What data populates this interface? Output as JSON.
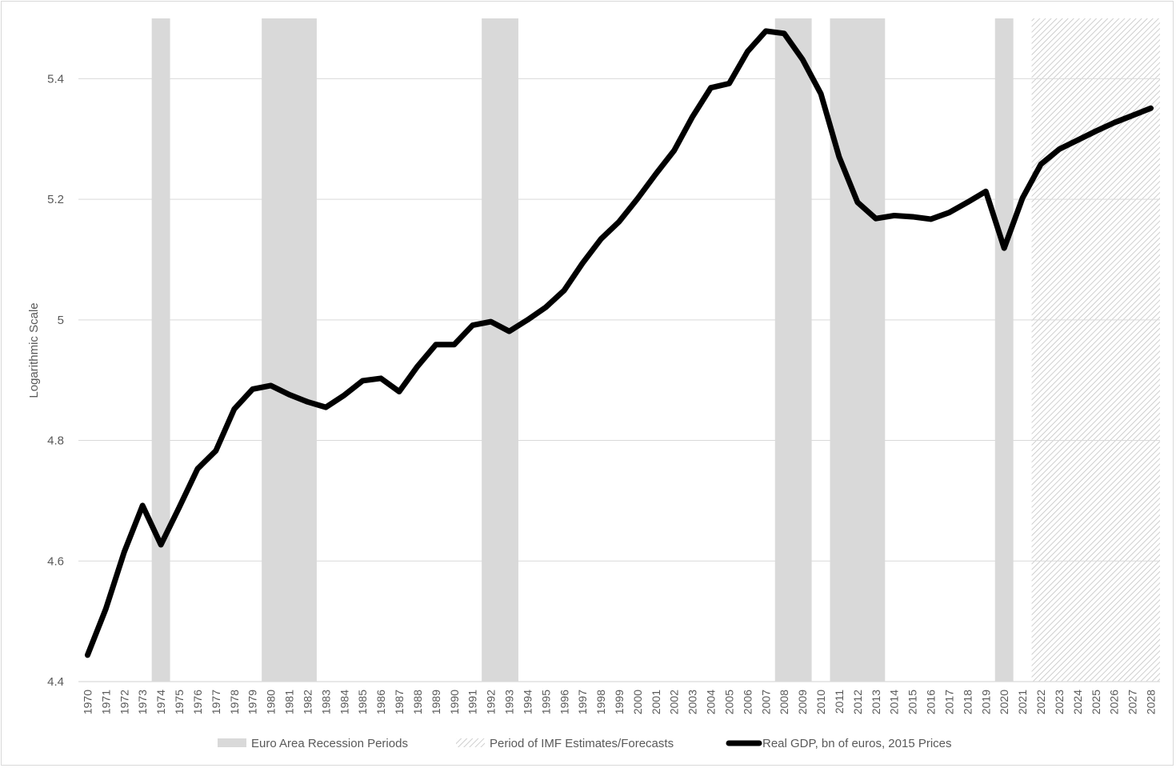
{
  "chart_data": {
    "type": "line",
    "title": "",
    "xlabel": "",
    "ylabel": "Logarithmic Scale",
    "ylim": [
      4.4,
      5.5
    ],
    "yticks": [
      "4.4",
      "4.6",
      "4.8",
      "5",
      "5.2",
      "5.4"
    ],
    "grid": "horizontal",
    "legend_position": "bottom",
    "x": [
      1970,
      1971,
      1972,
      1973,
      1974,
      1975,
      1976,
      1977,
      1978,
      1979,
      1980,
      1981,
      1982,
      1983,
      1984,
      1985,
      1986,
      1987,
      1988,
      1989,
      1990,
      1991,
      1992,
      1993,
      1994,
      1995,
      1996,
      1997,
      1998,
      1999,
      2000,
      2001,
      2002,
      2003,
      2004,
      2005,
      2006,
      2007,
      2008,
      2009,
      2010,
      2011,
      2012,
      2013,
      2014,
      2015,
      2016,
      2017,
      2018,
      2019,
      2020,
      2021,
      2022,
      2023,
      2024,
      2025,
      2026,
      2027,
      2028
    ],
    "x_labels": [
      "1970",
      "1971",
      "1972",
      "1973",
      "1974",
      "1975",
      "1976",
      "1977",
      "1978",
      "1979",
      "1980",
      "1981",
      "1982",
      "1983",
      "1984",
      "1985",
      "1986",
      "1987",
      "1988",
      "1989",
      "1990",
      "1991",
      "1992",
      "1993",
      "1994",
      "1995",
      "1996",
      "1997",
      "1998",
      "1999",
      "2000",
      "2001",
      "2002",
      "2003",
      "2004",
      "2005",
      "2006",
      "2007",
      "2008",
      "2009",
      "2010",
      "2011",
      "2012",
      "2013",
      "2014",
      "2015",
      "2016",
      "2017",
      "2018",
      "2019",
      "2020",
      "2021",
      "2022",
      "2023",
      "2024",
      "2025",
      "2026",
      "2027",
      "2028"
    ],
    "series": [
      {
        "name": "Real GDP, bn of euros, 2015 Prices",
        "color": "#000000",
        "values": [
          4.444,
          4.521,
          4.615,
          4.692,
          4.627,
          4.689,
          4.753,
          4.783,
          4.852,
          4.885,
          4.891,
          4.876,
          4.864,
          4.855,
          4.875,
          4.899,
          4.903,
          4.881,
          4.923,
          4.959,
          4.959,
          4.991,
          4.997,
          4.981,
          5.0,
          5.021,
          5.049,
          5.094,
          5.134,
          5.163,
          5.201,
          5.242,
          5.281,
          5.337,
          5.385,
          5.392,
          5.445,
          5.479,
          5.475,
          5.432,
          5.375,
          5.27,
          5.195,
          5.168,
          5.173,
          5.171,
          5.167,
          5.178,
          5.195,
          5.213,
          5.119,
          5.202,
          5.258,
          5.283,
          5.298,
          5.313,
          5.327,
          5.339,
          5.351
        ]
      }
    ],
    "recession_periods": [
      {
        "start": 1973.5,
        "end": 1974.5
      },
      {
        "start": 1979.5,
        "end": 1982.5
      },
      {
        "start": 1991.5,
        "end": 1993.5
      },
      {
        "start": 2007.5,
        "end": 2009.5
      },
      {
        "start": 2010.5,
        "end": 2013.5
      },
      {
        "start": 2019.5,
        "end": 2020.5
      }
    ],
    "forecast_period": {
      "start": 2021.5,
      "end": 2028.5
    },
    "legend": [
      {
        "label": "Euro Area Recession Periods",
        "style": "recession",
        "color": "#d9d9d9"
      },
      {
        "label": "Period of IMF Estimates/Forecasts",
        "style": "forecast",
        "color": "#bfbfbf"
      },
      {
        "label": "Real GDP, bn of euros, 2015 Prices",
        "style": "line",
        "color": "#000000"
      }
    ],
    "colors": {
      "grid": "#d9d9d9",
      "recession": "#d9d9d9",
      "forecast_hatch": "#bfbfbf",
      "line": "#000000",
      "text": "#595959"
    }
  }
}
